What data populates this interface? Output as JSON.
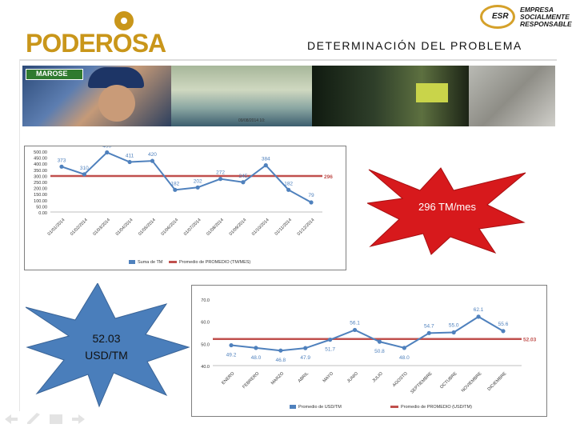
{
  "header": {
    "logo_text": "PODEROSA",
    "esr_mark": "ESR",
    "esr_lines": [
      "EMPRESA",
      "SOCIALMENTE",
      "RESPONSABLE"
    ],
    "title": "DETERMINACIÓN DEL PROBLEMA"
  },
  "photos": {
    "badge": "MAROSE",
    "caption": "09/08/2014 10:"
  },
  "callouts": {
    "tm_per_month": "296 TM/mes",
    "usd_per_tm_value": "52.03",
    "usd_per_tm_unit": "USD/TM"
  },
  "colors": {
    "series_blue": "#4f81bd",
    "average_red": "#c0504d",
    "burst_red": "#d7191c",
    "burst_blue": "#4a7ebb"
  },
  "chart_data": [
    {
      "type": "line",
      "categories": [
        "01/01/2014",
        "01/02/2014",
        "01/03/2014",
        "01/04/2014",
        "01/05/2014",
        "01/06/2014",
        "01/07/2014",
        "01/08/2014",
        "01/09/2014",
        "01/10/2014",
        "01/11/2014",
        "01/12/2014"
      ],
      "series": [
        {
          "name": "Suma de TM",
          "values": [
            373,
            310,
            490,
            411,
            420,
            182,
            202,
            272,
            245,
            384,
            182,
            79
          ]
        },
        {
          "name": "Promedio de PROMEDIO (TM/MES)",
          "values": [
            296,
            296,
            296,
            296,
            296,
            296,
            296,
            296,
            296,
            296,
            296,
            296
          ]
        }
      ],
      "data_labels": [
        "373",
        "310",
        "490",
        "411",
        "420",
        "182",
        "202",
        "272",
        "245",
        "384",
        "182",
        "79"
      ],
      "average_label": "296",
      "yticks": [
        "500.00",
        "400.00",
        "300.00",
        "200.00",
        "100.00",
        "0.00"
      ],
      "yticks_all": [
        "500.00",
        "450.00",
        "400.00",
        "350.00",
        "300.00",
        "250.00",
        "200.00",
        "150.00",
        "100.00",
        "50.00",
        "0.00"
      ],
      "ylim": [
        0,
        500
      ],
      "legend": "bottom",
      "grid": false
    },
    {
      "type": "line",
      "categories": [
        "ENERO",
        "FEBRERO",
        "MARZO",
        "ABRIL",
        "MAYO",
        "JUNIO",
        "JULIO",
        "AGOSTO",
        "SEPTIEMBRE",
        "OCTUBRE",
        "NOVIEMBRE",
        "DICIEMBRE"
      ],
      "series": [
        {
          "name": "Promedio de USD/TM",
          "values": [
            49.2,
            48.0,
            46.8,
            47.9,
            51.7,
            56.1,
            50.8,
            48.0,
            54.7,
            55.0,
            62.1,
            55.6
          ]
        },
        {
          "name": "Promedio de PROMEDIO (USD/TM)",
          "values": [
            52.03,
            52.03,
            52.03,
            52.03,
            52.03,
            52.03,
            52.03,
            52.03,
            52.03,
            52.03,
            52.03,
            52.03
          ]
        }
      ],
      "data_labels": [
        "49.2",
        "48.0",
        "46.8",
        "47.9",
        "51.7",
        "56.1",
        "50.8",
        "48.0",
        "54.7",
        "55.0",
        "62.1",
        "55.6"
      ],
      "average_label": "52.03",
      "yticks": [
        "70.0",
        "60.0",
        "50.0",
        "40.0"
      ],
      "ylim": [
        40,
        70
      ],
      "legend": "bottom",
      "grid": false
    }
  ]
}
